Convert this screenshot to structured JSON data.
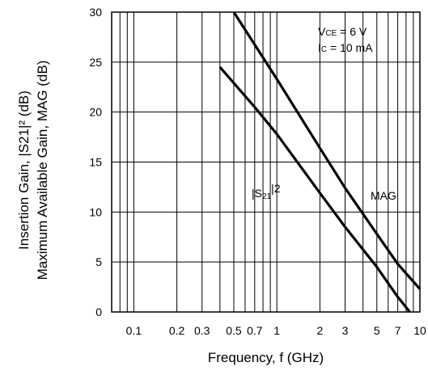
{
  "chart_data": {
    "type": "line",
    "xlabel": "Frequency, f (GHz)",
    "ylabel_line1": "Insertion Gain, |S21|² (dB)",
    "ylabel_line2": "Maximum Available Gain, MAG (dB)",
    "x_scale": "log",
    "xlim": [
      0.07,
      10
    ],
    "ylim": [
      0,
      30
    ],
    "x_ticks": [
      0.1,
      0.2,
      0.3,
      0.5,
      0.7,
      1,
      2,
      3,
      5,
      7,
      10
    ],
    "x_tick_labels": [
      "0.1",
      "0.2",
      "0.3",
      "0.5",
      "0.7",
      "1",
      "2",
      "3",
      "5",
      "7",
      "10"
    ],
    "y_ticks": [
      0,
      5,
      10,
      15,
      20,
      25,
      30
    ],
    "y_tick_labels": [
      "0",
      "5",
      "10",
      "15",
      "20",
      "25",
      "30"
    ],
    "grid": true,
    "conditions": {
      "line1_main": "V",
      "line1_sub": "CE",
      "line1_rest": " = 6 V",
      "line2_main": "I",
      "line2_sub": "C",
      "line2_rest": " = 10 mA"
    },
    "series": [
      {
        "name": "MAG",
        "label": "MAG",
        "x": [
          0.5,
          1,
          2,
          3,
          5,
          7,
          10
        ],
        "y": [
          30,
          23.3,
          16.4,
          12.4,
          7.8,
          4.8,
          2.3
        ]
      },
      {
        "name": "|S21|²",
        "label_main": "|S",
        "label_sub": "21",
        "label_rest": "|2",
        "x": [
          0.4,
          0.7,
          1,
          2,
          3,
          5,
          7,
          8.5
        ],
        "y": [
          24.5,
          20.5,
          17.8,
          11.9,
          8.5,
          4.5,
          1.5,
          0
        ]
      }
    ]
  }
}
